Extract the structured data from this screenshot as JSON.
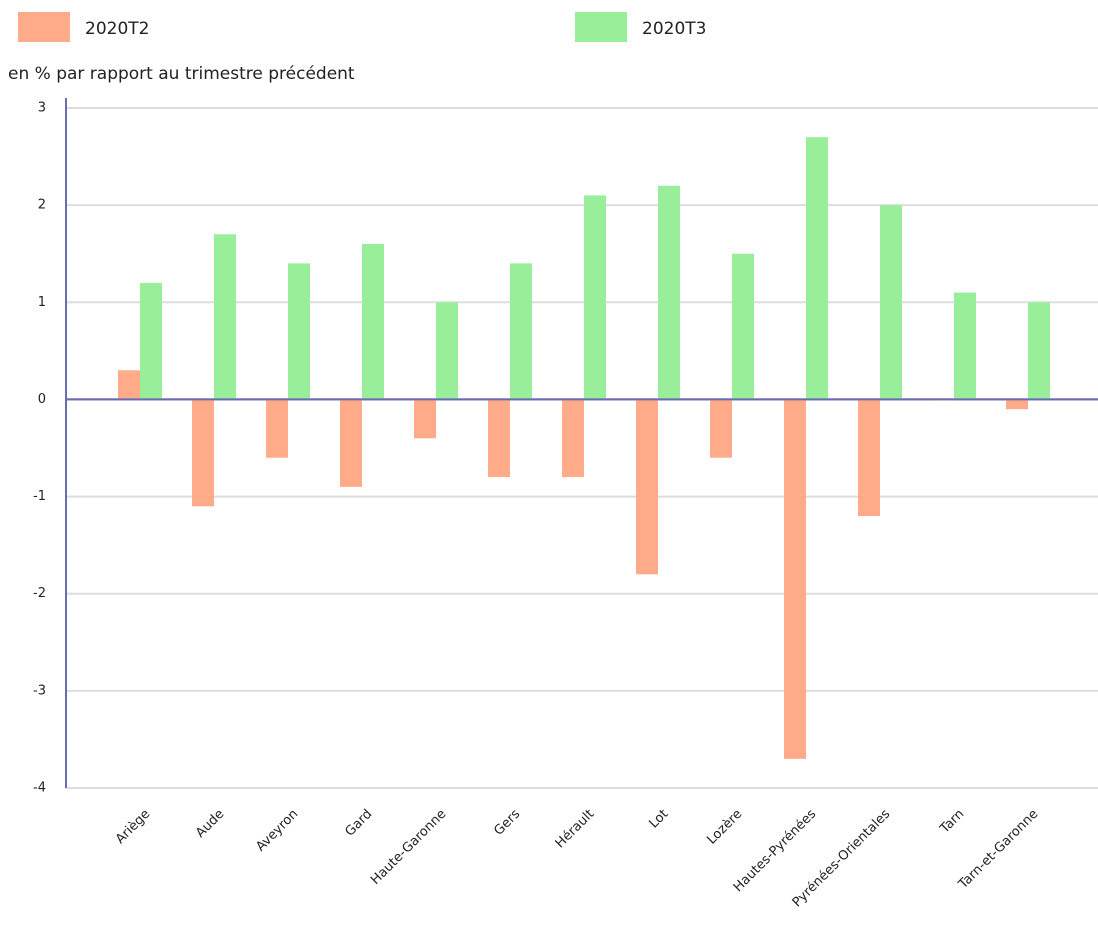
{
  "chart_data": {
    "type": "bar",
    "subtitle": "en % par rapport au trimestre précédent",
    "categories": [
      "Ariège",
      "Aude",
      "Aveyron",
      "Gard",
      "Haute-Garonne",
      "Gers",
      "Hérault",
      "Lot",
      "Lozère",
      "Hautes-Pyrénées",
      "Pyrénées-Orientales",
      "Tarn",
      "Tarn-et-Garonne"
    ],
    "series": [
      {
        "name": "2020T2",
        "color": "#ffaa88",
        "values": [
          0.3,
          -1.1,
          -0.6,
          -0.9,
          -0.4,
          -0.8,
          -0.8,
          -1.8,
          -0.6,
          -3.7,
          -1.2,
          0.0,
          -0.1
        ]
      },
      {
        "name": "2020T3",
        "color": "#99ee99",
        "values": [
          1.2,
          1.7,
          1.4,
          1.6,
          1.0,
          1.4,
          2.1,
          2.2,
          1.5,
          2.7,
          2.0,
          1.1,
          1.0
        ]
      }
    ],
    "ylim": [
      -4,
      3
    ],
    "yticks": [
      -4,
      -3,
      -2,
      -1,
      0,
      1,
      2,
      3
    ],
    "grid": true
  }
}
